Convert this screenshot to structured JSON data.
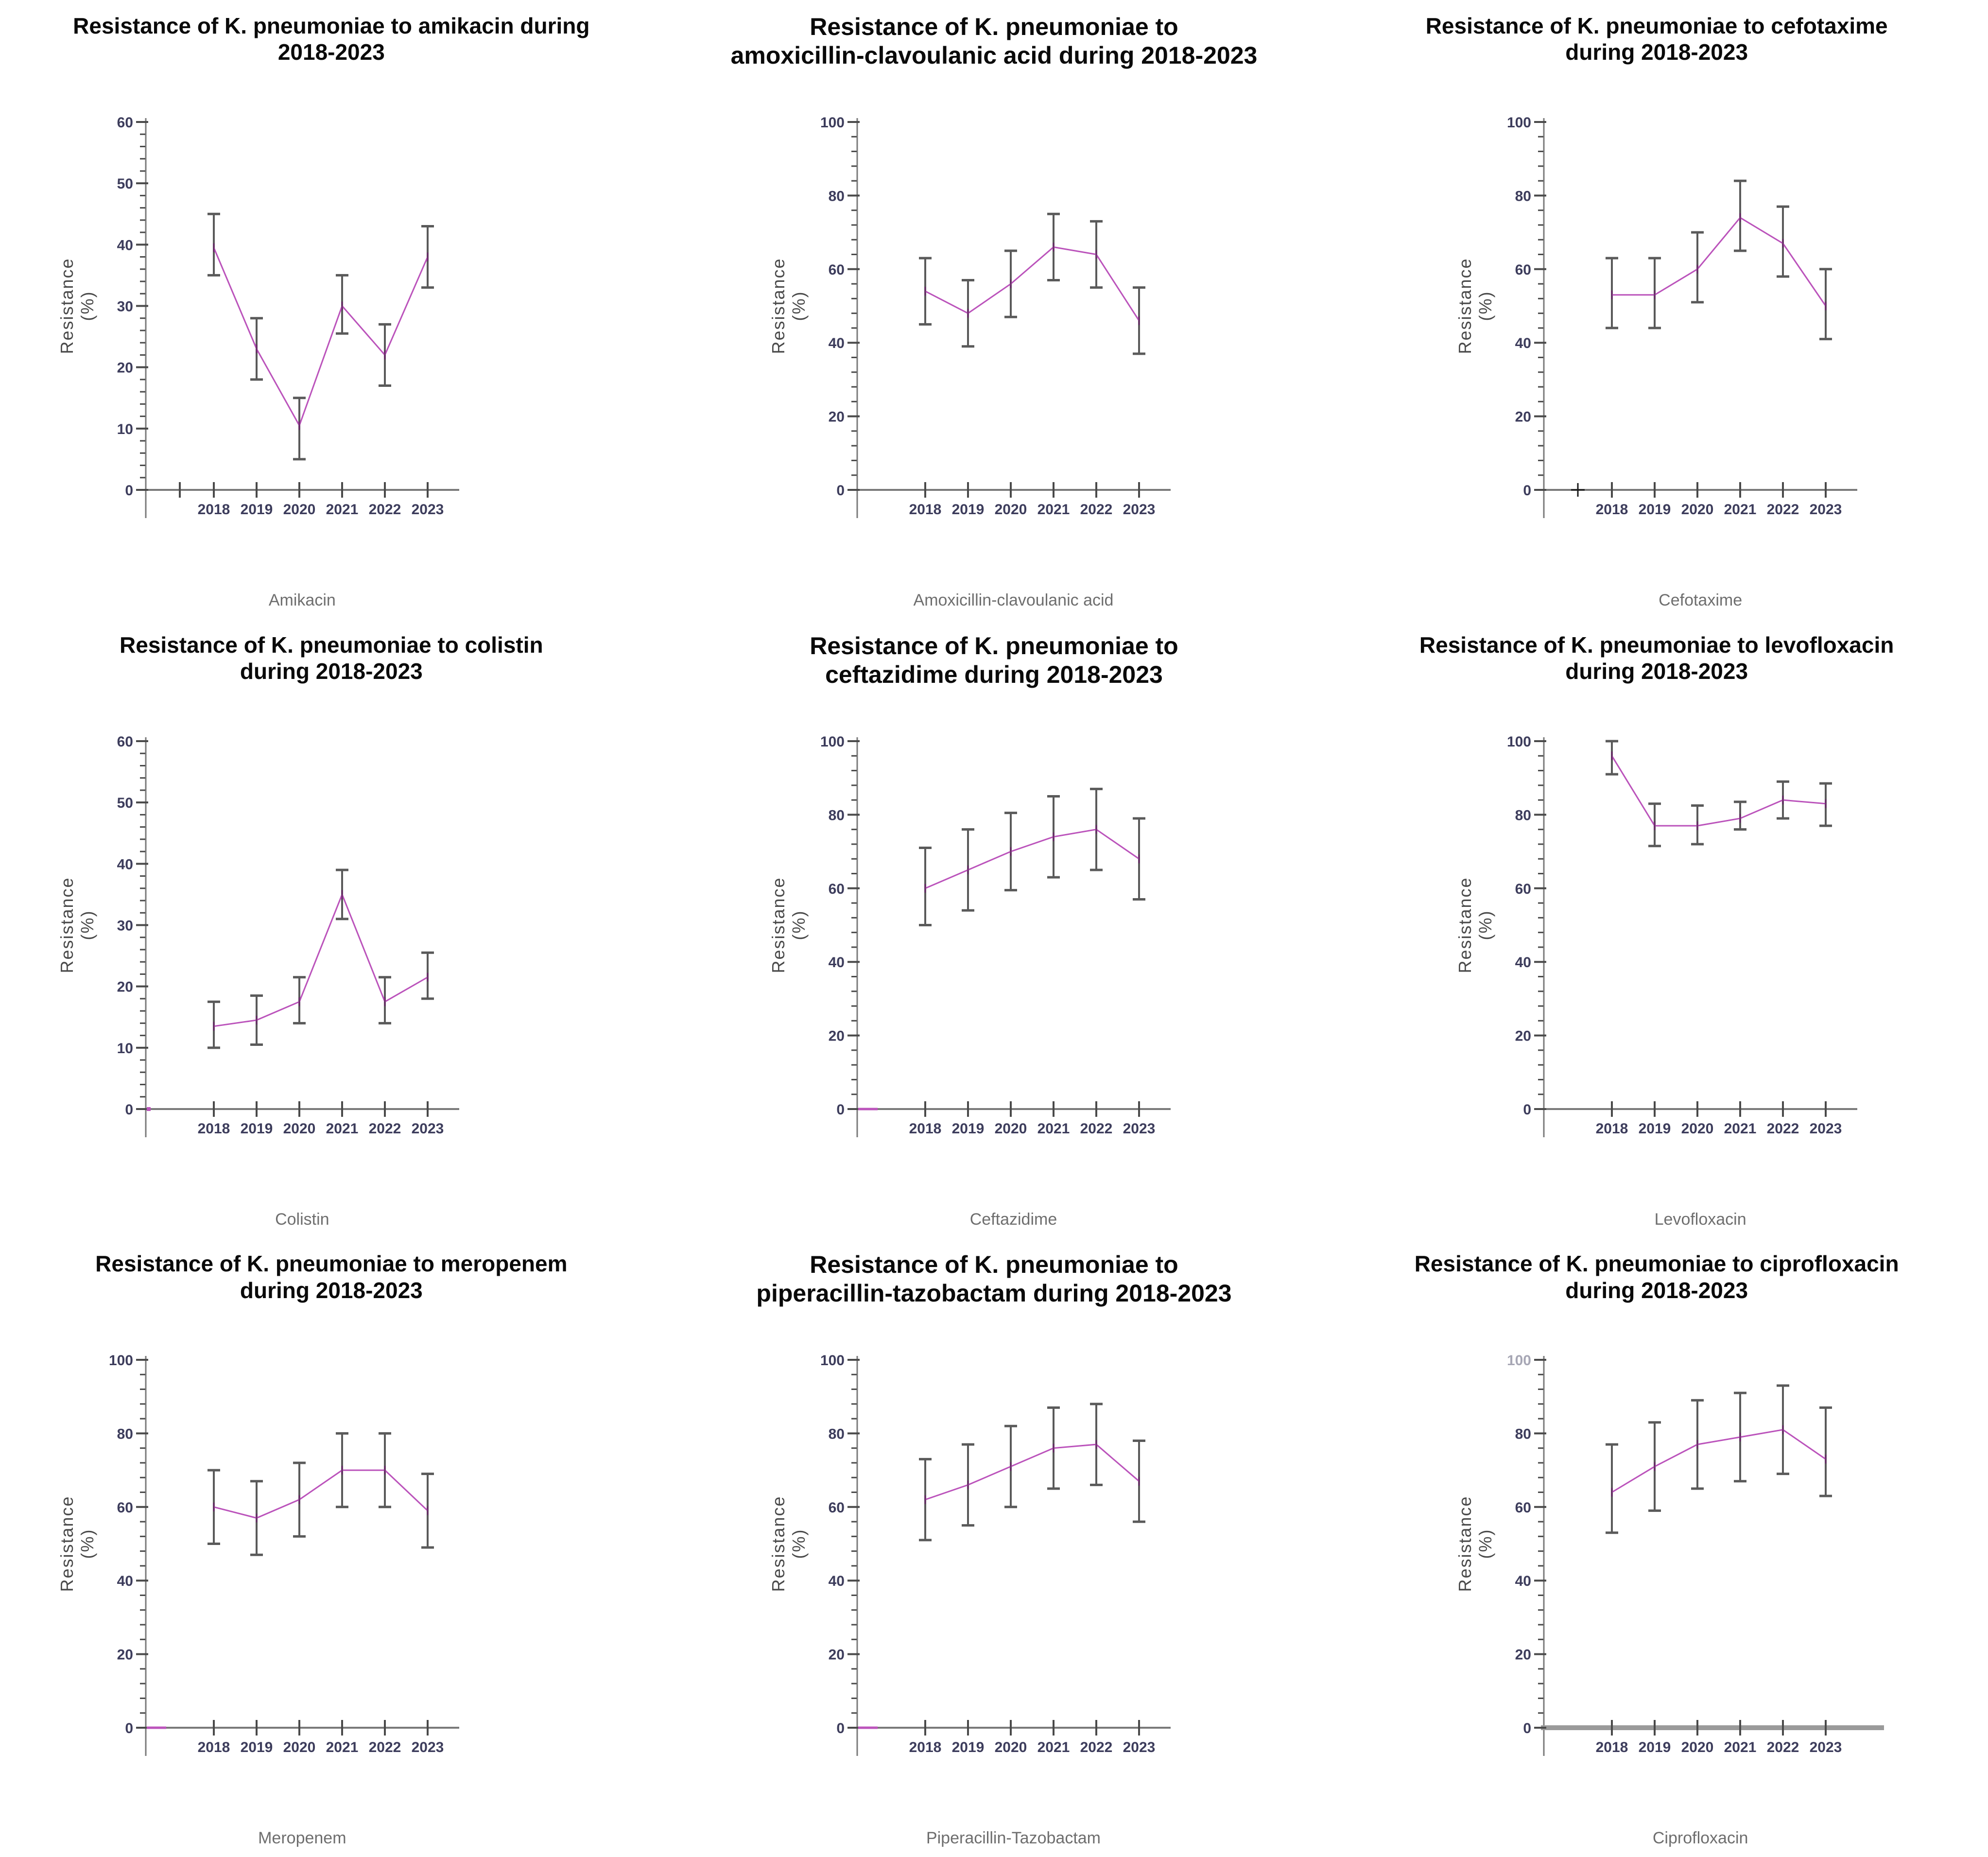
{
  "page": {
    "background": "#ffffff"
  },
  "style": {
    "line_color": "#bb53bb",
    "point_color": "#6a2d6a",
    "error_color": "#5a5a5a",
    "axis_color": "#7a7a7a",
    "thick_axis_color": "#9a9a9a",
    "tick_color": "#4a4a4a",
    "tick_label_color": "#3d3d5c",
    "title_color": "#0a0a0a",
    "xlabel_color": "#6e6e6e",
    "ylabel_color": "#4a4a4a",
    "origin_plus_color": "#1a1a1a"
  },
  "chart_data": [
    {
      "type": "line",
      "title": "Resistance of K. pneumoniae to amikacin during\n2018-2023",
      "xlabel": "Amikacin",
      "ylabel_line1": "Resistance",
      "ylabel_line2": "(%)",
      "ylim": [
        0,
        60
      ],
      "ytick_step": 10,
      "yminor_step": 2,
      "categories": [
        "2018",
        "2019",
        "2020",
        "2021",
        "2022",
        "2023"
      ],
      "values": [
        39.5,
        23,
        10.5,
        30,
        22,
        38
      ],
      "err_lo": [
        35,
        18,
        5,
        25.5,
        17,
        33
      ],
      "err_hi": [
        45,
        28,
        15,
        35,
        27,
        43
      ],
      "pre_tick": true,
      "origin_marker": "none",
      "thick_xaxis": false,
      "ymax_faded": false
    },
    {
      "type": "line",
      "title": "Resistance of K. pneumoniae to\namoxicillin-clavoulanic acid during 2018-2023",
      "xlabel": "Amoxicillin-clavoulanic acid",
      "ylabel_line1": "Resistance",
      "ylabel_line2": "(%)",
      "ylim": [
        0,
        100
      ],
      "ytick_step": 20,
      "yminor_step": 4,
      "categories": [
        "2018",
        "2019",
        "2020",
        "2021",
        "2022",
        "2023"
      ],
      "values": [
        54,
        48,
        56,
        66,
        64,
        46
      ],
      "err_lo": [
        45,
        39,
        47,
        57,
        55,
        37
      ],
      "err_hi": [
        63,
        57,
        65,
        75,
        73,
        55
      ],
      "pre_tick": false,
      "origin_marker": "none",
      "thick_xaxis": false,
      "ymax_faded": false
    },
    {
      "type": "line",
      "title": "Resistance of K. pneumoniae to cefotaxime\nduring 2018-2023",
      "xlabel": "Cefotaxime",
      "ylabel_line1": "Resistance",
      "ylabel_line2": "(%)",
      "ylim": [
        0,
        100
      ],
      "ytick_step": 20,
      "yminor_step": 4,
      "categories": [
        "2018",
        "2019",
        "2020",
        "2021",
        "2022",
        "2023"
      ],
      "values": [
        53,
        53,
        60,
        74,
        67,
        50
      ],
      "err_lo": [
        44,
        44,
        51,
        65,
        58,
        41
      ],
      "err_hi": [
        63,
        63,
        70,
        84,
        77,
        60
      ],
      "pre_tick": false,
      "origin_marker": "plus",
      "thick_xaxis": false,
      "ymax_faded": false
    },
    {
      "type": "line",
      "title": "Resistance of K. pneumoniae to colistin\nduring 2018-2023",
      "xlabel": "Colistin",
      "ylabel_line1": "Resistance",
      "ylabel_line2": "(%)",
      "ylim": [
        0,
        60
      ],
      "ytick_step": 10,
      "yminor_step": 2,
      "categories": [
        "2018",
        "2019",
        "2020",
        "2021",
        "2022",
        "2023"
      ],
      "values": [
        13.5,
        14.5,
        17.5,
        35,
        17.5,
        21.5
      ],
      "err_lo": [
        10,
        10.5,
        14,
        31,
        14,
        18
      ],
      "err_hi": [
        17.5,
        18.5,
        21.5,
        39,
        21.5,
        25.5
      ],
      "pre_tick": false,
      "origin_marker": "dot",
      "thick_xaxis": false,
      "ymax_faded": false
    },
    {
      "type": "line",
      "title": "Resistance of K. pneumoniae to\nceftazidime during 2018-2023",
      "xlabel": "Ceftazidime",
      "ylabel_line1": "Resistance",
      "ylabel_line2": "(%)",
      "ylim": [
        0,
        100
      ],
      "ytick_step": 20,
      "yminor_step": 4,
      "categories": [
        "2018",
        "2019",
        "2020",
        "2021",
        "2022",
        "2023"
      ],
      "values": [
        60,
        65,
        70,
        74,
        76,
        68
      ],
      "err_lo": [
        50,
        54,
        59.5,
        63,
        65,
        57
      ],
      "err_hi": [
        71,
        76,
        80.5,
        85,
        87,
        79
      ],
      "pre_tick": false,
      "origin_marker": "dash",
      "thick_xaxis": false,
      "ymax_faded": false
    },
    {
      "type": "line",
      "title": "Resistance of K. pneumoniae to levofloxacin\nduring 2018-2023",
      "xlabel": "Levofloxacin",
      "ylabel_line1": "Resistance",
      "ylabel_line2": "(%)",
      "ylim": [
        0,
        100
      ],
      "ytick_step": 20,
      "yminor_step": 4,
      "categories": [
        "2018",
        "2019",
        "2020",
        "2021",
        "2022",
        "2023"
      ],
      "values": [
        96,
        77,
        77,
        79,
        84,
        83
      ],
      "err_lo": [
        91,
        71.5,
        72,
        76,
        79,
        77
      ],
      "err_hi": [
        100,
        83,
        82.5,
        83.5,
        89,
        88.5
      ],
      "pre_tick": false,
      "origin_marker": "none",
      "thick_xaxis": false,
      "ymax_faded": false
    },
    {
      "type": "line",
      "title": "Resistance of K. pneumoniae to meropenem\nduring 2018-2023",
      "xlabel": "Meropenem",
      "ylabel_line1": "Resistance",
      "ylabel_line2": "(%)",
      "ylim": [
        0,
        100
      ],
      "ytick_step": 20,
      "yminor_step": 4,
      "categories": [
        "2018",
        "2019",
        "2020",
        "2021",
        "2022",
        "2023"
      ],
      "values": [
        60,
        57,
        62,
        70,
        70,
        59
      ],
      "err_lo": [
        50,
        47,
        52,
        60,
        60,
        49
      ],
      "err_hi": [
        70,
        67,
        72,
        80,
        80,
        69
      ],
      "pre_tick": false,
      "origin_marker": "dash",
      "thick_xaxis": false,
      "ymax_faded": false
    },
    {
      "type": "line",
      "title": "Resistance of K. pneumoniae to\npiperacillin-tazobactam during 2018-2023",
      "xlabel": "Piperacillin-Tazobactam",
      "ylabel_line1": "Resistance",
      "ylabel_line2": "(%)",
      "ylim": [
        0,
        100
      ],
      "ytick_step": 20,
      "yminor_step": 4,
      "categories": [
        "2018",
        "2019",
        "2020",
        "2021",
        "2022",
        "2023"
      ],
      "values": [
        62,
        66,
        71,
        76,
        77,
        67
      ],
      "err_lo": [
        51,
        55,
        60,
        65,
        66,
        56
      ],
      "err_hi": [
        73,
        77,
        82,
        87,
        88,
        78
      ],
      "pre_tick": false,
      "origin_marker": "dash",
      "thick_xaxis": false,
      "ymax_faded": false
    },
    {
      "type": "line",
      "title": "Resistance of K. pneumoniae to ciprofloxacin\nduring 2018-2023",
      "xlabel": "Ciprofloxacin",
      "ylabel_line1": "Resistance",
      "ylabel_line2": "(%)",
      "ylim": [
        0,
        100
      ],
      "ytick_step": 20,
      "yminor_step": 4,
      "categories": [
        "2018",
        "2019",
        "2020",
        "2021",
        "2022",
        "2023"
      ],
      "values": [
        64,
        71,
        77,
        79,
        81,
        73
      ],
      "err_lo": [
        53,
        59,
        65,
        67,
        69,
        63
      ],
      "err_hi": [
        77,
        83,
        89,
        91,
        93,
        87
      ],
      "pre_tick": false,
      "origin_marker": "none",
      "thick_xaxis": true,
      "ymax_faded": true
    }
  ]
}
